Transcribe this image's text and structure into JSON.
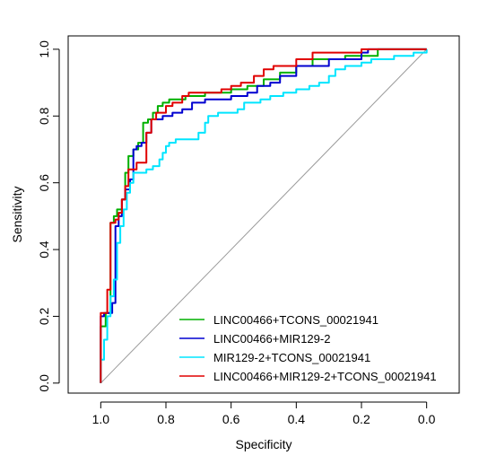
{
  "chart_data": {
    "type": "line",
    "xlabel": "Specificity",
    "ylabel": "Sensitivity",
    "xlim": [
      1.1,
      -0.1
    ],
    "ylim": [
      -0.03,
      1.04
    ],
    "x_reversed": true,
    "x_ticks": [
      1.0,
      0.8,
      0.6,
      0.4,
      0.2,
      0.0
    ],
    "x_tick_labels": [
      "1.0",
      "0.8",
      "0.6",
      "0.4",
      "0.2",
      "0.0"
    ],
    "y_ticks": [
      0.0,
      0.2,
      0.4,
      0.6,
      0.8,
      1.0
    ],
    "y_tick_labels": [
      "0.0",
      "0.2",
      "0.4",
      "0.6",
      "0.8",
      "1.0"
    ],
    "reference_line": {
      "from": [
        1.0,
        0.0
      ],
      "to": [
        0.0,
        1.0
      ],
      "color": "#a0a0a0"
    },
    "grid": false,
    "legend_position": "bottom-right",
    "series": [
      {
        "name": "LINC00466+TCONS_00021941",
        "color": "#00b000",
        "points": [
          [
            1.0,
            0.0
          ],
          [
            1.0,
            0.17
          ],
          [
            0.985,
            0.17
          ],
          [
            0.985,
            0.21
          ],
          [
            0.97,
            0.21
          ],
          [
            0.97,
            0.48
          ],
          [
            0.96,
            0.48
          ],
          [
            0.96,
            0.5
          ],
          [
            0.95,
            0.5
          ],
          [
            0.95,
            0.52
          ],
          [
            0.935,
            0.52
          ],
          [
            0.935,
            0.55
          ],
          [
            0.925,
            0.55
          ],
          [
            0.925,
            0.63
          ],
          [
            0.915,
            0.63
          ],
          [
            0.915,
            0.68
          ],
          [
            0.9,
            0.68
          ],
          [
            0.9,
            0.7
          ],
          [
            0.885,
            0.7
          ],
          [
            0.885,
            0.72
          ],
          [
            0.87,
            0.72
          ],
          [
            0.87,
            0.78
          ],
          [
            0.855,
            0.78
          ],
          [
            0.855,
            0.79
          ],
          [
            0.84,
            0.79
          ],
          [
            0.84,
            0.81
          ],
          [
            0.825,
            0.81
          ],
          [
            0.825,
            0.83
          ],
          [
            0.81,
            0.83
          ],
          [
            0.81,
            0.84
          ],
          [
            0.79,
            0.84
          ],
          [
            0.79,
            0.85
          ],
          [
            0.74,
            0.85
          ],
          [
            0.74,
            0.86
          ],
          [
            0.68,
            0.86
          ],
          [
            0.68,
            0.87
          ],
          [
            0.6,
            0.87
          ],
          [
            0.6,
            0.88
          ],
          [
            0.55,
            0.88
          ],
          [
            0.55,
            0.89
          ],
          [
            0.5,
            0.89
          ],
          [
            0.5,
            0.91
          ],
          [
            0.45,
            0.91
          ],
          [
            0.45,
            0.93
          ],
          [
            0.4,
            0.93
          ],
          [
            0.4,
            0.95
          ],
          [
            0.35,
            0.95
          ],
          [
            0.35,
            0.97
          ],
          [
            0.25,
            0.97
          ],
          [
            0.25,
            0.98
          ],
          [
            0.15,
            0.98
          ],
          [
            0.15,
            1.0
          ],
          [
            0.0,
            1.0
          ]
        ]
      },
      {
        "name": "LINC00466+MIR129-2",
        "color": "#0000d0",
        "points": [
          [
            1.0,
            0.0
          ],
          [
            1.0,
            0.2
          ],
          [
            0.99,
            0.2
          ],
          [
            0.99,
            0.21
          ],
          [
            0.965,
            0.21
          ],
          [
            0.965,
            0.24
          ],
          [
            0.955,
            0.24
          ],
          [
            0.955,
            0.47
          ],
          [
            0.945,
            0.47
          ],
          [
            0.945,
            0.5
          ],
          [
            0.935,
            0.5
          ],
          [
            0.935,
            0.55
          ],
          [
            0.925,
            0.55
          ],
          [
            0.925,
            0.58
          ],
          [
            0.91,
            0.58
          ],
          [
            0.91,
            0.61
          ],
          [
            0.9,
            0.61
          ],
          [
            0.9,
            0.7
          ],
          [
            0.89,
            0.7
          ],
          [
            0.89,
            0.71
          ],
          [
            0.875,
            0.71
          ],
          [
            0.875,
            0.72
          ],
          [
            0.86,
            0.72
          ],
          [
            0.86,
            0.75
          ],
          [
            0.845,
            0.75
          ],
          [
            0.845,
            0.79
          ],
          [
            0.81,
            0.79
          ],
          [
            0.81,
            0.8
          ],
          [
            0.78,
            0.8
          ],
          [
            0.78,
            0.81
          ],
          [
            0.75,
            0.81
          ],
          [
            0.75,
            0.82
          ],
          [
            0.72,
            0.82
          ],
          [
            0.72,
            0.84
          ],
          [
            0.68,
            0.84
          ],
          [
            0.68,
            0.85
          ],
          [
            0.6,
            0.85
          ],
          [
            0.6,
            0.86
          ],
          [
            0.55,
            0.86
          ],
          [
            0.55,
            0.87
          ],
          [
            0.52,
            0.87
          ],
          [
            0.52,
            0.89
          ],
          [
            0.48,
            0.89
          ],
          [
            0.48,
            0.9
          ],
          [
            0.45,
            0.9
          ],
          [
            0.45,
            0.92
          ],
          [
            0.4,
            0.92
          ],
          [
            0.4,
            0.95
          ],
          [
            0.3,
            0.95
          ],
          [
            0.3,
            0.97
          ],
          [
            0.2,
            0.97
          ],
          [
            0.2,
            0.99
          ],
          [
            0.18,
            0.99
          ],
          [
            0.18,
            1.0
          ],
          [
            0.0,
            1.0
          ]
        ]
      },
      {
        "name": "MIR129-2+TCONS_00021941",
        "color": "#00e5ff",
        "points": [
          [
            1.0,
            0.0
          ],
          [
            1.0,
            0.07
          ],
          [
            0.99,
            0.07
          ],
          [
            0.99,
            0.13
          ],
          [
            0.98,
            0.13
          ],
          [
            0.98,
            0.2
          ],
          [
            0.97,
            0.2
          ],
          [
            0.97,
            0.26
          ],
          [
            0.96,
            0.26
          ],
          [
            0.96,
            0.31
          ],
          [
            0.95,
            0.31
          ],
          [
            0.95,
            0.42
          ],
          [
            0.94,
            0.42
          ],
          [
            0.94,
            0.47
          ],
          [
            0.93,
            0.47
          ],
          [
            0.93,
            0.52
          ],
          [
            0.92,
            0.52
          ],
          [
            0.92,
            0.57
          ],
          [
            0.91,
            0.57
          ],
          [
            0.91,
            0.6
          ],
          [
            0.9,
            0.6
          ],
          [
            0.9,
            0.63
          ],
          [
            0.86,
            0.63
          ],
          [
            0.86,
            0.64
          ],
          [
            0.84,
            0.64
          ],
          [
            0.84,
            0.65
          ],
          [
            0.82,
            0.65
          ],
          [
            0.82,
            0.67
          ],
          [
            0.81,
            0.67
          ],
          [
            0.81,
            0.69
          ],
          [
            0.8,
            0.69
          ],
          [
            0.8,
            0.71
          ],
          [
            0.79,
            0.71
          ],
          [
            0.79,
            0.72
          ],
          [
            0.77,
            0.72
          ],
          [
            0.77,
            0.73
          ],
          [
            0.7,
            0.73
          ],
          [
            0.7,
            0.75
          ],
          [
            0.68,
            0.75
          ],
          [
            0.68,
            0.78
          ],
          [
            0.67,
            0.78
          ],
          [
            0.67,
            0.8
          ],
          [
            0.64,
            0.8
          ],
          [
            0.64,
            0.81
          ],
          [
            0.58,
            0.81
          ],
          [
            0.58,
            0.82
          ],
          [
            0.56,
            0.82
          ],
          [
            0.56,
            0.84
          ],
          [
            0.51,
            0.84
          ],
          [
            0.51,
            0.85
          ],
          [
            0.48,
            0.85
          ],
          [
            0.48,
            0.86
          ],
          [
            0.44,
            0.86
          ],
          [
            0.44,
            0.87
          ],
          [
            0.4,
            0.87
          ],
          [
            0.4,
            0.88
          ],
          [
            0.36,
            0.88
          ],
          [
            0.36,
            0.89
          ],
          [
            0.33,
            0.89
          ],
          [
            0.33,
            0.9
          ],
          [
            0.3,
            0.9
          ],
          [
            0.3,
            0.92
          ],
          [
            0.28,
            0.92
          ],
          [
            0.28,
            0.94
          ],
          [
            0.25,
            0.94
          ],
          [
            0.25,
            0.95
          ],
          [
            0.2,
            0.95
          ],
          [
            0.2,
            0.96
          ],
          [
            0.17,
            0.96
          ],
          [
            0.17,
            0.97
          ],
          [
            0.1,
            0.97
          ],
          [
            0.1,
            0.98
          ],
          [
            0.04,
            0.98
          ],
          [
            0.04,
            0.99
          ],
          [
            0.0,
            0.99
          ],
          [
            0.0,
            1.0
          ]
        ]
      },
      {
        "name": "LINC00466+MIR129-2+TCONS_00021941",
        "color": "#e00000",
        "points": [
          [
            1.0,
            0.0
          ],
          [
            1.0,
            0.21
          ],
          [
            0.98,
            0.21
          ],
          [
            0.98,
            0.28
          ],
          [
            0.97,
            0.28
          ],
          [
            0.97,
            0.48
          ],
          [
            0.955,
            0.48
          ],
          [
            0.955,
            0.49
          ],
          [
            0.945,
            0.49
          ],
          [
            0.945,
            0.51
          ],
          [
            0.935,
            0.51
          ],
          [
            0.935,
            0.55
          ],
          [
            0.925,
            0.55
          ],
          [
            0.925,
            0.59
          ],
          [
            0.915,
            0.59
          ],
          [
            0.915,
            0.64
          ],
          [
            0.89,
            0.64
          ],
          [
            0.89,
            0.66
          ],
          [
            0.86,
            0.66
          ],
          [
            0.86,
            0.75
          ],
          [
            0.845,
            0.75
          ],
          [
            0.845,
            0.79
          ],
          [
            0.83,
            0.79
          ],
          [
            0.83,
            0.81
          ],
          [
            0.8,
            0.81
          ],
          [
            0.8,
            0.83
          ],
          [
            0.78,
            0.83
          ],
          [
            0.78,
            0.84
          ],
          [
            0.75,
            0.84
          ],
          [
            0.75,
            0.86
          ],
          [
            0.73,
            0.86
          ],
          [
            0.73,
            0.87
          ],
          [
            0.63,
            0.87
          ],
          [
            0.63,
            0.88
          ],
          [
            0.6,
            0.88
          ],
          [
            0.6,
            0.89
          ],
          [
            0.57,
            0.89
          ],
          [
            0.57,
            0.9
          ],
          [
            0.53,
            0.9
          ],
          [
            0.53,
            0.92
          ],
          [
            0.5,
            0.92
          ],
          [
            0.5,
            0.94
          ],
          [
            0.47,
            0.94
          ],
          [
            0.47,
            0.95
          ],
          [
            0.4,
            0.95
          ],
          [
            0.4,
            0.97
          ],
          [
            0.35,
            0.97
          ],
          [
            0.35,
            0.99
          ],
          [
            0.2,
            0.99
          ],
          [
            0.2,
            1.0
          ],
          [
            0.0,
            1.0
          ]
        ]
      }
    ]
  }
}
